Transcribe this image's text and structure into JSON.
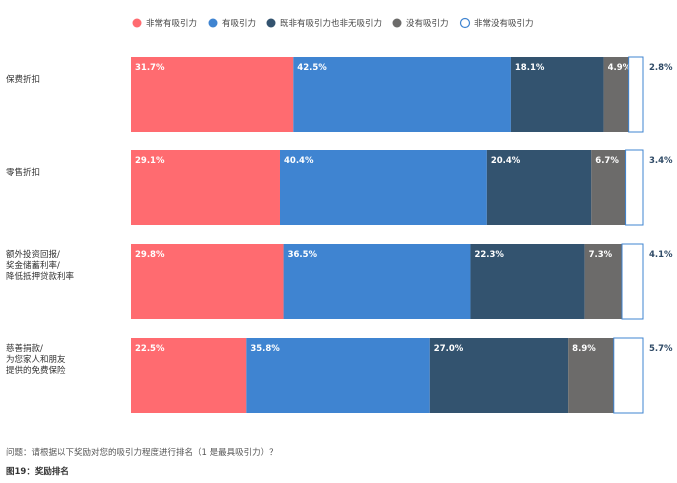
{
  "chart_data": {
    "type": "bar",
    "orientation": "horizontal",
    "stacked": true,
    "normalized": true,
    "categories": [
      [
        "保费折扣"
      ],
      [
        "零售折扣"
      ],
      [
        "额外投资回报/",
        "奖金储蓄利率/",
        "降低抵押贷款利率"
      ],
      [
        "慈善捐款/",
        "为您家人和朋友",
        "提供的免费保险"
      ]
    ],
    "series": [
      {
        "name": "非常有吸引力",
        "color": "#ff6b70",
        "values": [
          31.7,
          29.1,
          29.8,
          22.5
        ],
        "labels": [
          "31.7%",
          "29.1%",
          "29.8%",
          "22.5%"
        ]
      },
      {
        "name": "有吸引力",
        "color": "#3f84d1",
        "values": [
          42.5,
          40.4,
          36.5,
          35.8
        ],
        "labels": [
          "42.5%",
          "40.4%",
          "36.5%",
          "35.8%"
        ]
      },
      {
        "name": "既非有吸引力也非无吸引力",
        "color": "#33536f",
        "values": [
          18.1,
          20.4,
          22.3,
          27.0
        ],
        "labels": [
          "18.1%",
          "20.4%",
          "22.3%",
          "27.0%"
        ]
      },
      {
        "name": "没有吸引力",
        "color": "#6c6b6a",
        "values": [
          4.9,
          6.7,
          7.3,
          8.9
        ],
        "labels": [
          "4.9%",
          "6.7%",
          "7.3%",
          "8.9%"
        ]
      },
      {
        "name": "非常没有吸引力",
        "color": "#ffffff",
        "stroke": "#3f84d1",
        "hollow": true,
        "values": [
          2.8,
          3.4,
          4.1,
          5.7
        ],
        "labels": [
          "2.8%",
          "3.4%",
          "4.1%",
          "5.7%"
        ]
      }
    ],
    "legend_position": "top-right",
    "grid": false
  },
  "footer": {
    "question": "问题：请根据以下奖励对您的吸引力程度进行排名（1 是最具吸引力）？",
    "caption": "图19：奖励排名"
  }
}
